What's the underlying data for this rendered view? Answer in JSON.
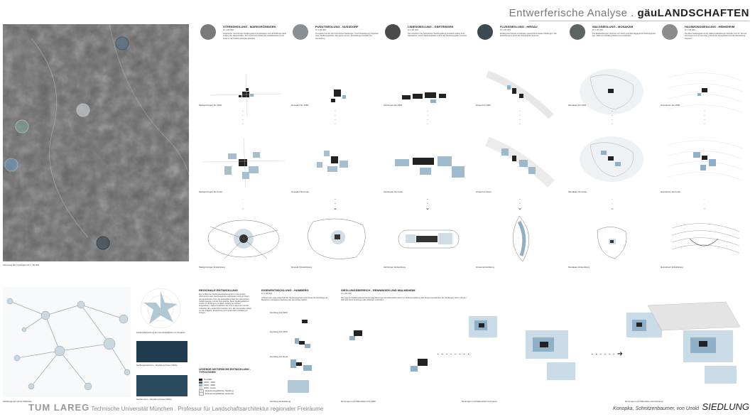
{
  "header": {
    "title_prefix": "Entwerferische Analyse . ",
    "title_brand": "gäuLANDSCHAFTEN"
  },
  "map": {
    "caption": "Verortung der Typologien M 1 : 50 000"
  },
  "typologies": [
    {
      "title": "STERNSIEDLUNG - MARKGRÖNINGEN",
      "scale": "M 1:25 000",
      "text": "Historische, sternförmige Siedlungskerne entwickelten sich ab 1960 als radial entlang der Hauptstraßen. Der historische Verlauf der Ausfallstraßen ist bis heute in der Siedlungsstruktur ablesbar.",
      "cap1": "Markgröningen bis 1960",
      "cap2": "Markgröningen bis heute",
      "cap3": "Markgröningen Entwicklung"
    },
    {
      "title": "PUNKTSIEDLUNG - NUSSDORF",
      "scale": "M 1:25 000",
      "text": "Kompakte Formen der historischen Siedlungen. Durch Erweiterung entstehen neue Siedlungsgebiete. Der ganze Grund - Entwicklung innerhalb der Gemarkung.",
      "cap1": "Nussdorf bis 1960",
      "cap2": "Nussdorf bis heute",
      "cap3": "Nussdorf Entwicklung"
    },
    {
      "title": "LINIENSIEDLUNG - GÄRTRINGEN",
      "scale": "M 1:25 000",
      "text": "Die Linienform der historischen Siedlungskerne entstand entlang einer Hauptachse. Durch Neubaugebiete wurde das Siedlungsgebiet erweitert.",
      "cap1": "Gärtringen bis 1960",
      "cap2": "Gärtringen bis heute",
      "cap3": "Gärtringen Entwicklung"
    },
    {
      "title": "FLUSSSIEDLUNG - HIRSAU",
      "scale": "M 1:25 000",
      "text": "Entlang des Flusses entstanden gewachsene lineare Siedlungen. Die Entwicklung ist durch die Topographie begrenzt.",
      "cap1": "Hirsau bis 1960",
      "cap2": "Hirsau bis heute",
      "cap3": "Hirsau Entwicklung"
    },
    {
      "title": "WALDSIEDLUNG - MONAKAM",
      "scale": "M 1:25 000",
      "text": "Die Waldsiedlungen zeichnen sich durch eine klar abgegrenzte Rodungsinsel aus. Wald und Siedlung bleiben eng verbunden.",
      "cap1": "Monakam bis 1960",
      "cap2": "Monakam bis heute",
      "cap3": "Monakam Entwicklung"
    },
    {
      "title": "HALBMONDSIEDLUNG - HEIMSHEIM",
      "scale": "M 1:25 000",
      "text": "Die alten Siedlungskerne der Halbmondsiedlungen befinden sich im Tal und schmiegen sich an den Hang. Durch die Topographie wird die Entwicklung begrenzt.",
      "cap1": "Heimsheim bis 1960",
      "cap2": "Heimsheim bis heute",
      "cap3": "Heimsheim Entwicklung"
    }
  ],
  "bottom": {
    "network_caption": "Siedlungsnetz (ohne Maßstab)",
    "wind_caption": "Landschaftsnutzung der Gemeindeflächen im Vergleich",
    "photo1_caption": "Siedlungsrand Kern - Neubau auf freier Fläche",
    "photo2_caption": "Neubau Kern - Neubau auf freier Fläche",
    "regional_title": "REGIONALE ENTWICKLUNG",
    "regional_text": "Ein Großteil der Siedlungsentwicklung fand in den letzten Jahrzehnten statt. Neubaugebiete entstanden meist am Rand der bestehenden Orte. Die Entwicklung folgt den historischen Verkehrswegen und der Topographie. Neue Siedlungsflächen wurden in der Region vor allem entlang der Achsen ausgewiesen. Dadurch wachsen die Orte zusammen und der Charakter der Landschaft verändert sich. Die Gemeinden stehen vor der Aufgabe, Entwicklung und Landschaft in Einklang zu bringen.",
    "legend_title": "LEGENDE HISTORISCHE ENTWICKLUNG - TYPOLOGIEN",
    "legend": [
      "bis 1900",
      "1900 - 1960",
      "1960 - 2000",
      "2000 - heute",
      "Erweiterungsflächen Siedlung",
      "Erweiterungsflächen Gewerbe"
    ],
    "legend_colors": [
      "#111111",
      "#555555",
      "#8fb0c6",
      "#c9dbe6",
      "#e6eef3",
      "#f2f2f2"
    ],
    "eigen_title": "EIGENENTWICKLUNG - HAMBERG",
    "eigen_scale": "M 1:25 000",
    "eigen_text": "Aufgrund der Lage außerhalb der Siedlungsachsen wird primär die Nachfrage der Bewohner und Eigenentwicklung der Gemeinde ergänzt.",
    "eigen_caps": [
      "Hamberg bis 1960",
      "Hamberg bis 1990",
      "Hamberg bis heute",
      "Hamberg Entwicklung"
    ],
    "sied_title": "SIEDLUNGSBEREICH - RENNINGEN UND MALMSHEIM",
    "sied_scale": "M 1:25 000",
    "sied_text": "Die Lage im Siedlungsbereich begünstigt Renningen und Malmsheim auch zur Außenentwicklung. Ein Zusammenwachsen der Siedlungen wird in diesem Fall nicht durch Grünzüge oder ähnliches verhindert.",
    "sied_caps": [
      "Renningen und Malmsheim bis 1960",
      "Renningen und Malmsheim bis heute",
      "Renningen und Malmsheim Entwicklung"
    ]
  },
  "footer": {
    "logo": "TUM LAREG",
    "institution": "Technische Universität München . Professur für Landschaftsarchitektur regionaler Freiräume",
    "authors": "Konopka, Schnitzenbaumer, von Unold",
    "section": "SIEDLUNG"
  }
}
